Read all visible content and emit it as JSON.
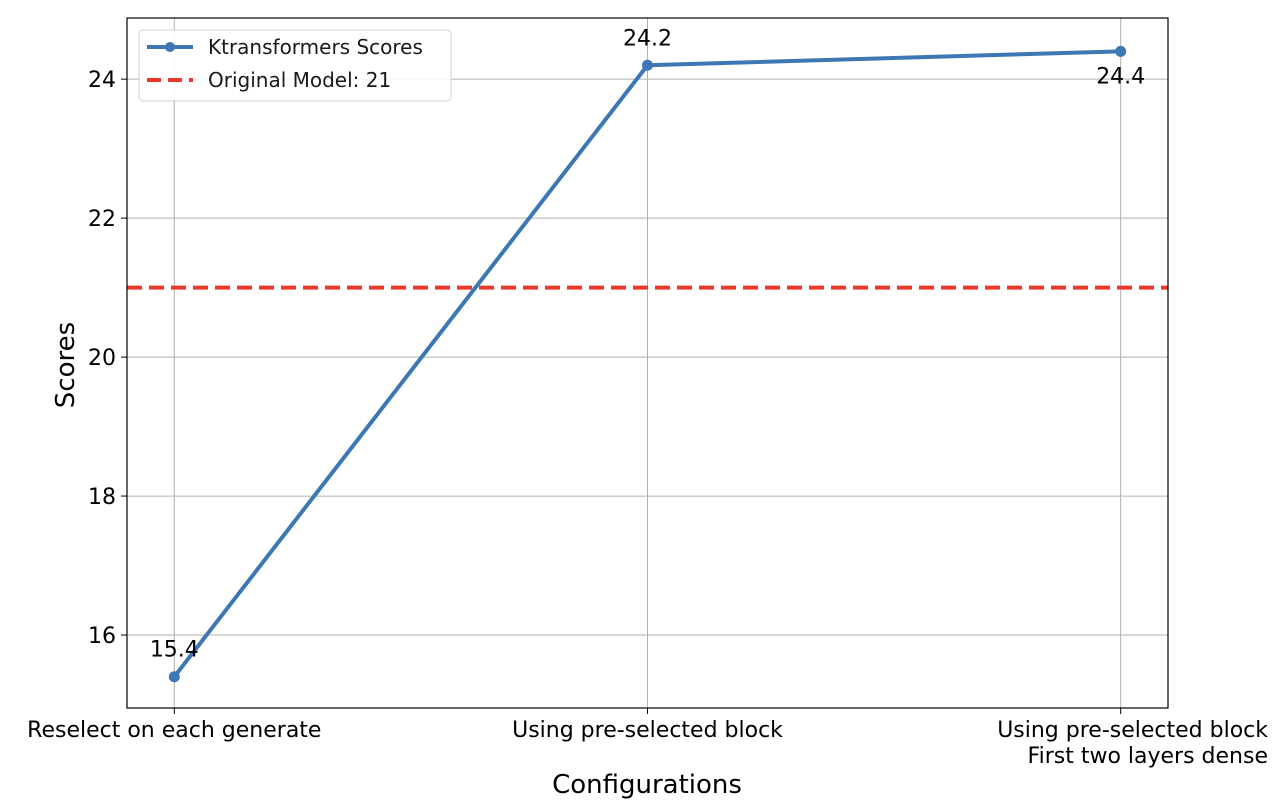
{
  "chart_data": {
    "type": "line",
    "title": "",
    "xlabel": "Configurations",
    "ylabel": "Scores",
    "categories": [
      [
        "Reselect on each generate"
      ],
      [
        "Using pre-selected block"
      ],
      [
        "Using pre-selected block",
        "First two layers dense"
      ]
    ],
    "series": [
      {
        "name": "Ktransformers Scores",
        "values": [
          15.4,
          24.2,
          24.4
        ],
        "color": "#3d77b4",
        "data_labels": [
          "15.4",
          "24.2",
          "24.4"
        ],
        "label_placement": [
          "above",
          "above",
          "below"
        ]
      }
    ],
    "reference_line": {
      "name": "Original Model: 21",
      "value": 21,
      "color": "#e8392a",
      "style": "dashed"
    },
    "yticks": [
      16,
      18,
      20,
      22,
      24
    ],
    "ylim": [
      14.95,
      24.88
    ],
    "xlim": [
      -0.1,
      2.1
    ],
    "grid": true,
    "legend_position": "top-left"
  }
}
